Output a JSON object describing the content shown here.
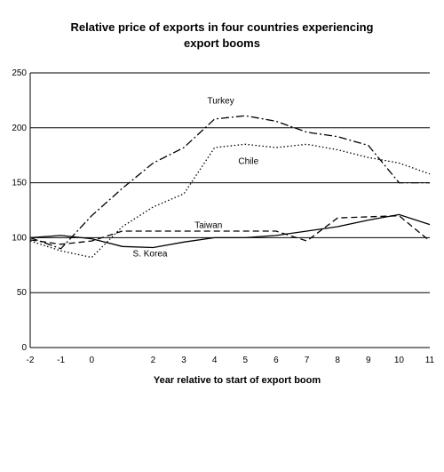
{
  "chart_data": {
    "type": "line",
    "title_lines": [
      "Relative price of exports in four countries experiencing",
      "export booms"
    ],
    "xlabel": "Year relative to start of export boom",
    "ylabel": "",
    "xlim": [
      -2,
      11
    ],
    "ylim": [
      0,
      250
    ],
    "x_ticks": [
      "-2",
      "-1",
      "0",
      "",
      "2",
      "3",
      "4",
      "5",
      "6",
      "7",
      "8",
      "9",
      "10",
      "11"
    ],
    "y_ticks": [
      "0",
      "50",
      "100",
      "150",
      "200",
      "250"
    ],
    "grid": "horizontal",
    "legend": "none (series labelled directly on chart)",
    "x": [
      -2,
      -1,
      0,
      1,
      2,
      3,
      4,
      5,
      6,
      7,
      8,
      9,
      10,
      11
    ],
    "series": [
      {
        "name": "Turkey",
        "style": "dash-dot",
        "values": [
          100,
          90,
          120,
          145,
          168,
          182,
          208,
          211,
          206,
          196,
          192,
          184,
          150,
          150
        ]
      },
      {
        "name": "Chile",
        "style": "dotted",
        "values": [
          97,
          88,
          82,
          110,
          128,
          140,
          182,
          185,
          182,
          185,
          180,
          173,
          168,
          158
        ]
      },
      {
        "name": "Taiwan",
        "style": "dashed",
        "values": [
          98,
          94,
          97,
          106,
          106,
          106,
          106,
          106,
          106,
          97,
          118,
          119,
          120,
          97
        ]
      },
      {
        "name": "S. Korea",
        "style": "solid",
        "values": [
          100,
          102,
          99,
          92,
          91,
          96,
          100,
          100,
          102,
          106,
          110,
          116,
          121,
          112
        ]
      }
    ],
    "colors": {
      "line": "#000000",
      "grid": "#000000",
      "background": "#ffffff"
    }
  }
}
